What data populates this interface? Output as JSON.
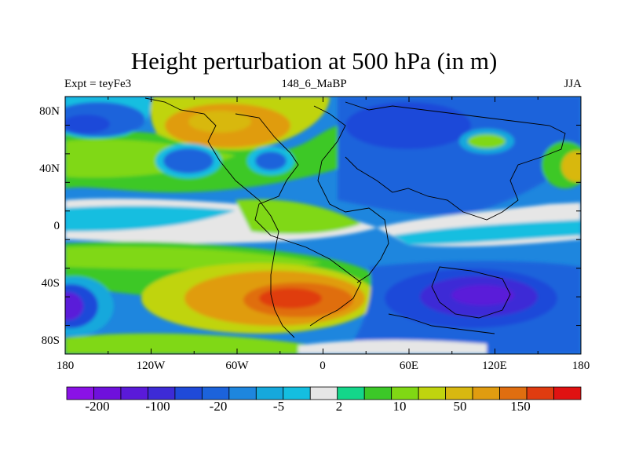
{
  "title": "Height perturbation at 500 hPa (in m)",
  "left_string": "Expt = teyFe3",
  "center_string": "148_6_MaBP",
  "right_string": "JJA",
  "map": {
    "projection": "cylindrical-equidistant",
    "lon_range": [
      -180,
      180
    ],
    "lat_range": [
      -90,
      90
    ],
    "lon_tick_labels": [
      "180",
      "120W",
      "60W",
      "0",
      "60E",
      "120E",
      "180"
    ],
    "lat_tick_labels": [
      "80N",
      "40N",
      "0",
      "40S",
      "80S"
    ],
    "field": "500 hPa geopotential height perturbation",
    "units": "m"
  },
  "colorbar": {
    "colors": [
      "#8a12e6",
      "#6f10dc",
      "#5a1ad9",
      "#3d2bd6",
      "#1f4ad9",
      "#1c63db",
      "#1e86de",
      "#16a8dc",
      "#14bee0",
      "#e6e6e6",
      "#14d68a",
      "#3cc828",
      "#80d814",
      "#c0d40e",
      "#d8b810",
      "#e09c10",
      "#e06e10",
      "#e03c10",
      "#e01212"
    ],
    "labels": [
      "-200",
      "-100",
      "-20",
      "-5",
      "2",
      "10",
      "50",
      "150"
    ]
  }
}
